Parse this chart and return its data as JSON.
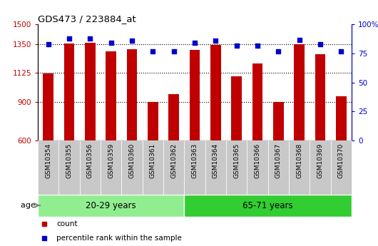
{
  "title": "GDS473 / 223884_at",
  "categories": [
    "GSM10354",
    "GSM10355",
    "GSM10356",
    "GSM10359",
    "GSM10360",
    "GSM10361",
    "GSM10362",
    "GSM10363",
    "GSM10364",
    "GSM10365",
    "GSM10366",
    "GSM10367",
    "GSM10368",
    "GSM10369",
    "GSM10370"
  ],
  "counts": [
    1120,
    1355,
    1360,
    1290,
    1310,
    898,
    960,
    1305,
    1340,
    1100,
    1200,
    900,
    1350,
    1270,
    940
  ],
  "percentile_ranks": [
    83,
    88,
    88,
    84,
    86,
    77,
    77,
    84,
    86,
    82,
    82,
    77,
    87,
    83,
    77
  ],
  "group1_label": "20-29 years",
  "group2_label": "65-71 years",
  "group1_count": 7,
  "group2_count": 8,
  "ylim_left": [
    600,
    1500
  ],
  "ylim_right": [
    0,
    100
  ],
  "yticks_left": [
    600,
    900,
    1125,
    1350,
    1500
  ],
  "yticks_right": [
    0,
    25,
    50,
    75,
    100
  ],
  "dotted_lines": [
    900,
    1125,
    1350
  ],
  "bar_color": "#C00000",
  "dot_color": "#0000CC",
  "group1_bg": "#90EE90",
  "group2_bg": "#32CD32",
  "tick_label_bg": "#C8C8C8",
  "legend_items": [
    {
      "label": "count",
      "color": "#C00000",
      "marker": "s"
    },
    {
      "label": "percentile rank within the sample",
      "color": "#0000CC",
      "marker": "s"
    }
  ]
}
